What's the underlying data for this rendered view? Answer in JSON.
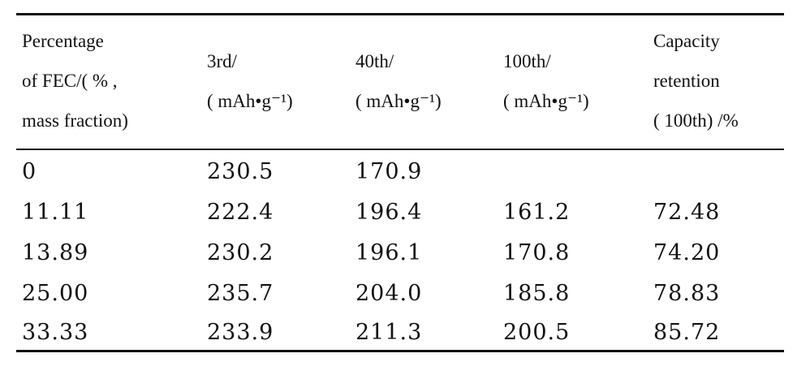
{
  "table": {
    "header": [
      [
        "Percentage",
        "of FEC/( % ,",
        "mass fraction)"
      ],
      [
        "3rd/",
        "( mAh•g⁻¹)"
      ],
      [
        "40th/",
        "( mAh•g⁻¹)"
      ],
      [
        "100th/",
        "( mAh•g⁻¹)"
      ],
      [
        "Capacity",
        "retention",
        "( 100th) /%"
      ]
    ],
    "rows": [
      [
        "0",
        "230.5",
        "170.9"
      ],
      [
        "11.11",
        "222.4",
        "196.4",
        "161.2",
        "72.48"
      ],
      [
        "13.89",
        "230.2",
        "196.1",
        "170.8",
        "74.20"
      ],
      [
        "25.00",
        "235.7",
        "204.0",
        "185.8",
        "78.83"
      ],
      [
        "33.33",
        "233.9",
        "211.3",
        "200.5",
        "85.72"
      ]
    ]
  }
}
